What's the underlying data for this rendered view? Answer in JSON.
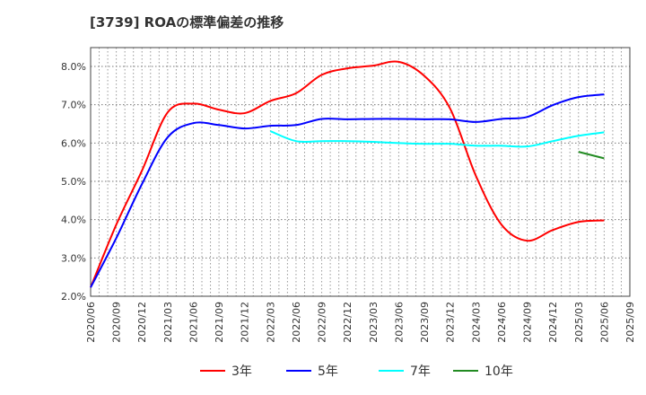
{
  "chart_data": {
    "type": "line",
    "title": "[3739]  ROAの標準偏差の推移",
    "xlabel": "",
    "ylabel": "",
    "ylim": [
      2.0,
      8.5
    ],
    "yticks": [
      "2.0%",
      "3.0%",
      "4.0%",
      "5.0%",
      "6.0%",
      "7.0%",
      "8.0%"
    ],
    "xticks": [
      "2020/06",
      "2020/09",
      "2020/12",
      "2021/03",
      "2021/06",
      "2021/09",
      "2021/12",
      "2022/03",
      "2022/06",
      "2022/09",
      "2022/12",
      "2023/03",
      "2023/06",
      "2023/09",
      "2023/12",
      "2024/03",
      "2024/06",
      "2024/09",
      "2024/12",
      "2025/03",
      "2025/06",
      "2025/09"
    ],
    "grid": true,
    "legend_position": "bottom",
    "series": [
      {
        "name": "3年",
        "color": "#ff0000",
        "start": 0,
        "values": [
          2.23,
          3.87,
          5.28,
          6.8,
          7.03,
          6.87,
          6.78,
          7.1,
          7.3,
          7.78,
          7.95,
          8.02,
          8.12,
          7.75,
          6.9,
          5.15,
          3.87,
          3.45,
          3.73,
          3.94,
          3.98
        ]
      },
      {
        "name": "5年",
        "color": "#0000ff",
        "start": 0,
        "values": [
          2.23,
          3.52,
          4.93,
          6.15,
          6.52,
          6.47,
          6.38,
          6.45,
          6.47,
          6.63,
          6.62,
          6.63,
          6.63,
          6.62,
          6.62,
          6.55,
          6.63,
          6.68,
          6.99,
          7.2,
          7.27
        ]
      },
      {
        "name": "7年",
        "color": "#00ffff",
        "start": 7,
        "values": [
          6.31,
          6.05,
          6.05,
          6.05,
          6.03,
          6.0,
          5.98,
          5.98,
          5.93,
          5.93,
          5.91,
          6.05,
          6.19,
          6.28
        ]
      },
      {
        "name": "10年",
        "color": "#228b22",
        "start": 19,
        "values": [
          5.77,
          5.6
        ]
      }
    ]
  }
}
